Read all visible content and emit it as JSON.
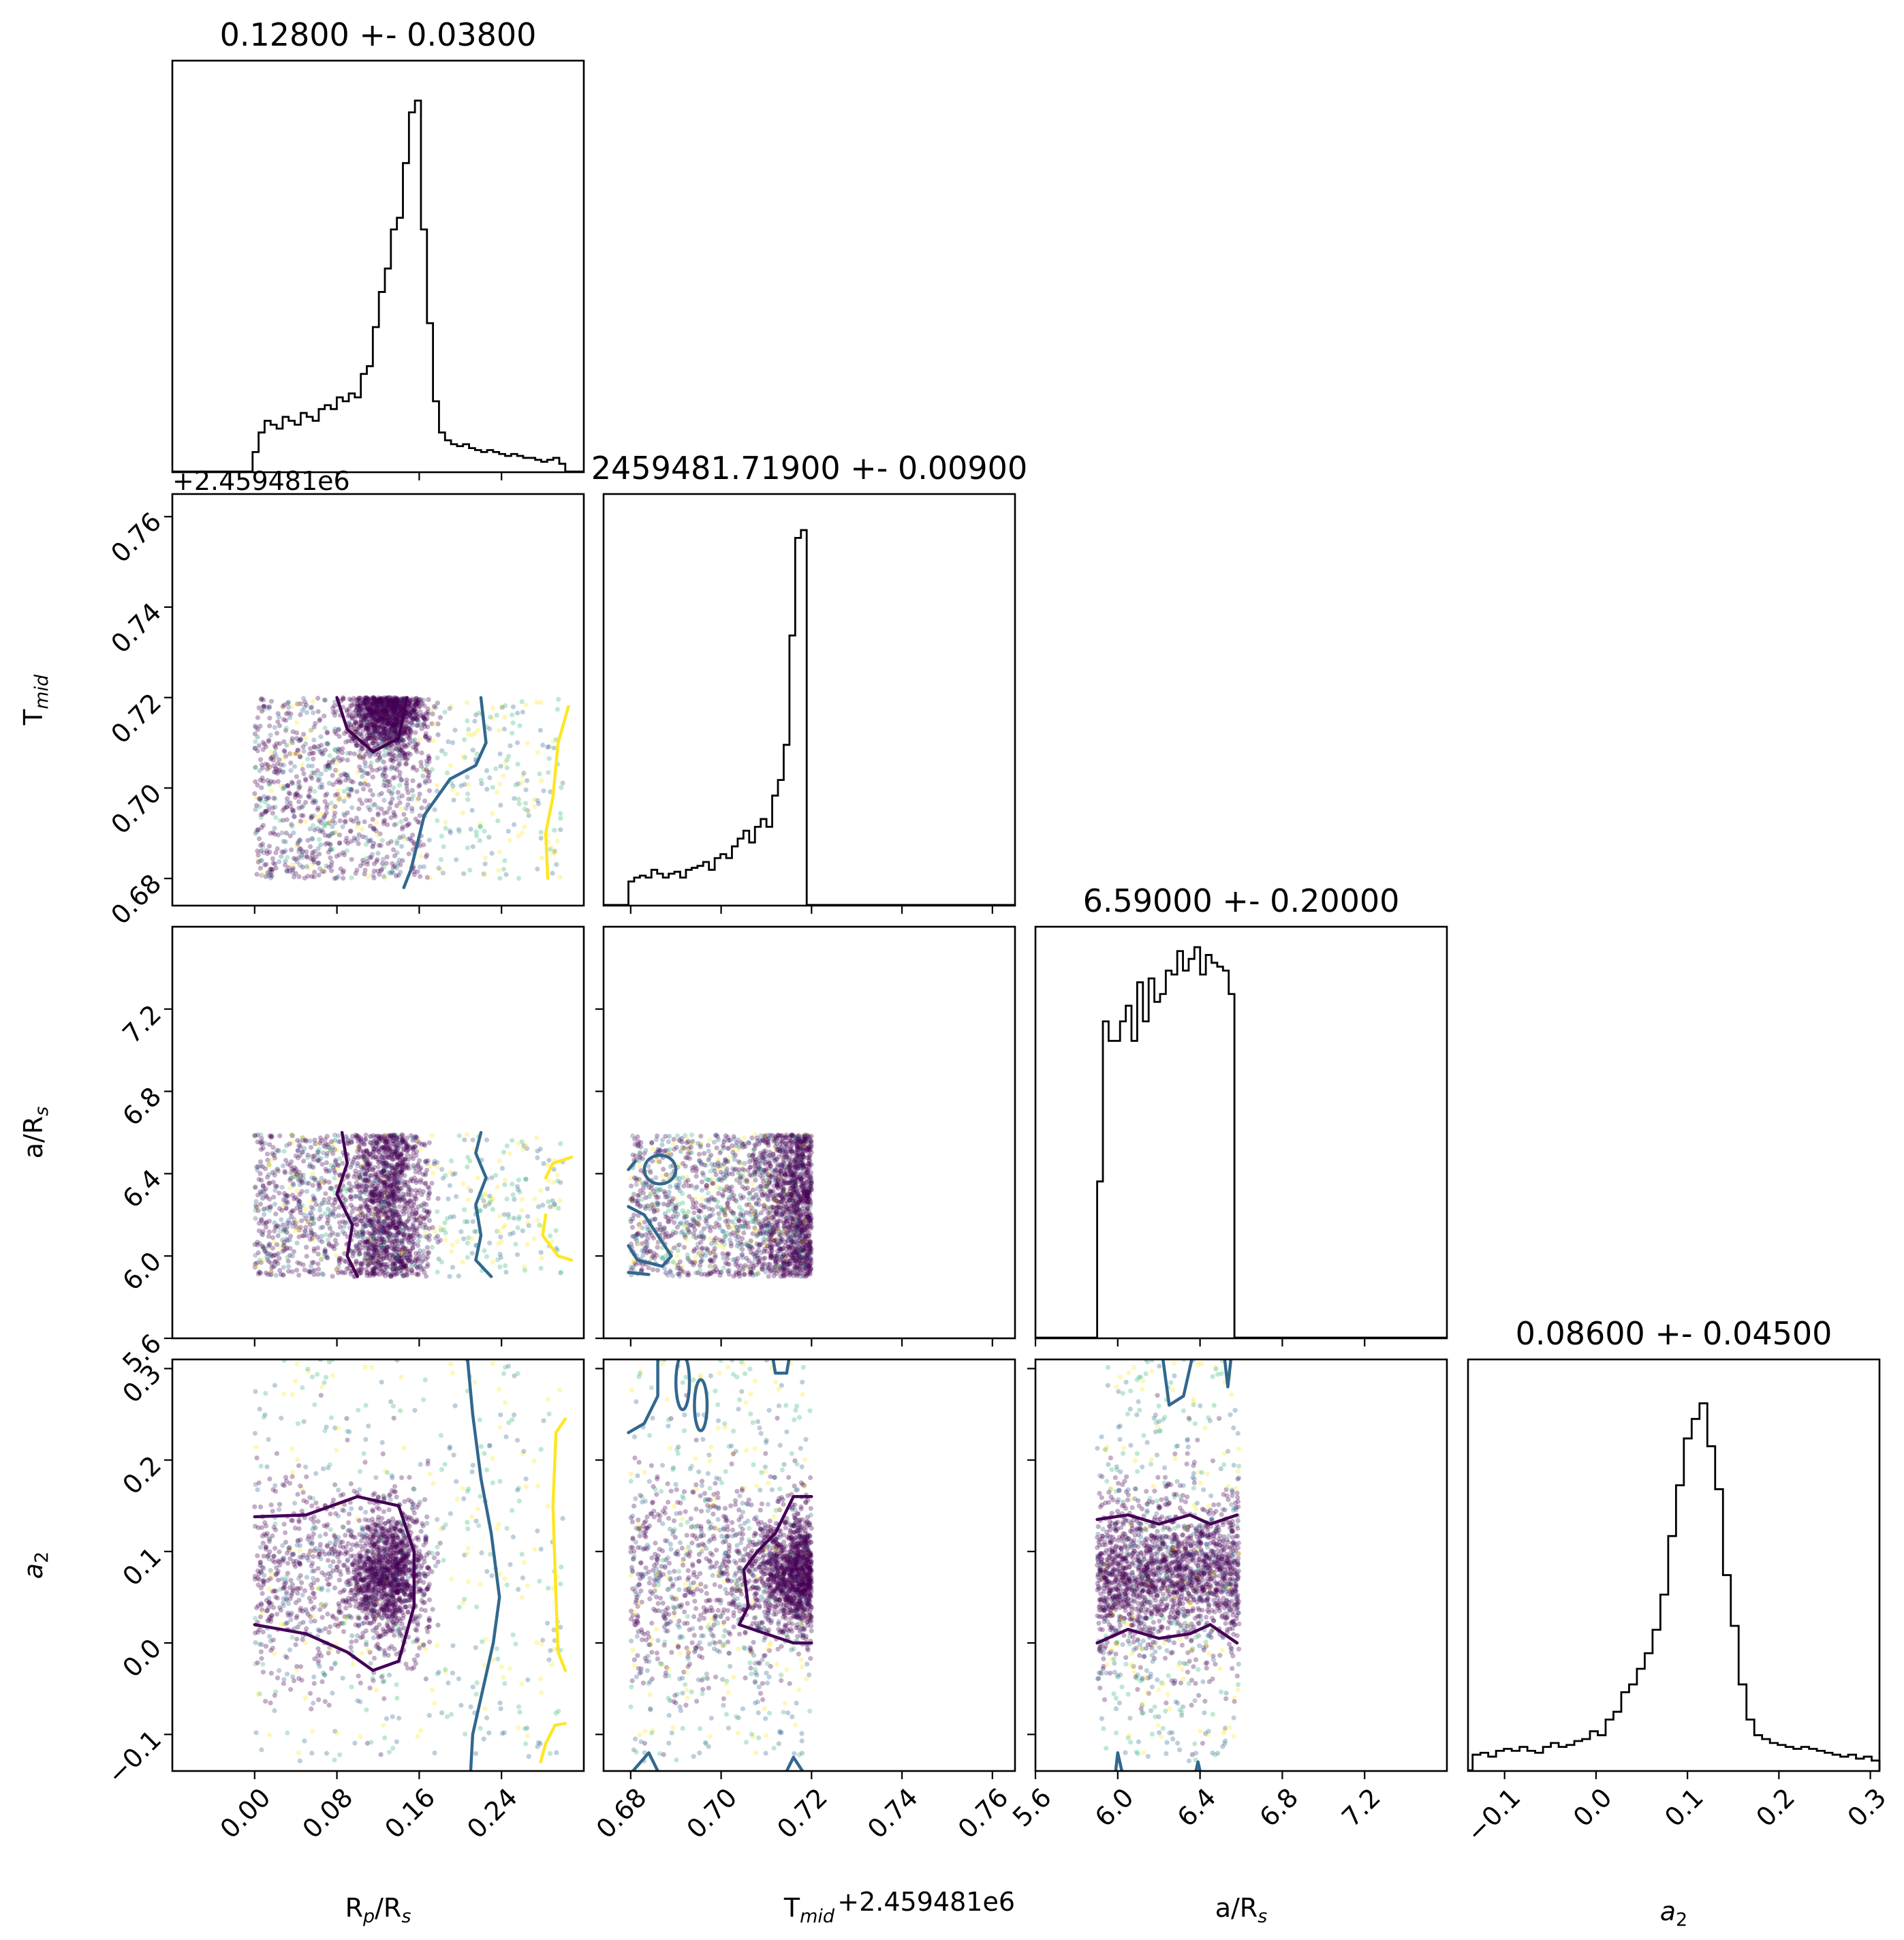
{
  "chart_data": {
    "type": "scatter",
    "kind": "corner plot",
    "parameters": [
      {
        "key": "rprs",
        "label": "R",
        "sub": "p",
        "label_tail": "/R",
        "sub2": "s",
        "range": [
          -0.08,
          0.32
        ],
        "ticks": [
          0.0,
          0.08,
          0.16,
          0.24
        ],
        "tick_labels": [
          "0.00",
          "0.08",
          "0.16",
          "0.24"
        ],
        "title": "0.12800 +- 0.03800",
        "median": 0.128,
        "sigma": 0.038
      },
      {
        "key": "tmid",
        "label": "T",
        "sub": "mid",
        "label_tail": "",
        "sub2": "",
        "range": [
          0.674,
          0.765
        ],
        "ticks": [
          0.68,
          0.7,
          0.72,
          0.74,
          0.76
        ],
        "tick_labels": [
          "0.68",
          "0.70",
          "0.72",
          "0.74",
          "0.76"
        ],
        "offset_text": "+2.459481e6",
        "title": "2459481.71900 +- 0.00900",
        "median": 0.719,
        "sigma": 0.009
      },
      {
        "key": "ars",
        "label": "a/R",
        "sub": "s",
        "label_tail": "",
        "sub2": "",
        "range": [
          5.6,
          7.6
        ],
        "ticks": [
          5.6,
          6.0,
          6.4,
          6.8,
          7.2
        ],
        "tick_labels": [
          "5.6",
          "6.0",
          "6.4",
          "6.8",
          "7.2"
        ],
        "title": "6.59000 +- 0.20000",
        "median": 6.59,
        "sigma": 0.2
      },
      {
        "key": "a2",
        "label": "a",
        "sub": "2",
        "label_tail": "",
        "sub2": "",
        "italic": true,
        "range": [
          -0.14,
          0.31
        ],
        "ticks": [
          -0.1,
          0.0,
          0.1,
          0.2,
          0.3
        ],
        "tick_labels": [
          "−0.1",
          "0.0",
          "0.1",
          "0.2",
          "0.3"
        ],
        "title": "0.08600 +- 0.04500",
        "median": 0.086,
        "sigma": 0.045
      }
    ],
    "histograms": {
      "rprs": {
        "bins": [
          -0.002,
          0.302
        ],
        "counts": [
          0.05,
          0.1,
          0.13,
          0.12,
          0.11,
          0.14,
          0.13,
          0.12,
          0.15,
          0.14,
          0.13,
          0.16,
          0.17,
          0.16,
          0.19,
          0.18,
          0.2,
          0.19,
          0.25,
          0.27,
          0.37,
          0.46,
          0.52,
          0.62,
          0.65,
          0.79,
          0.92,
          0.95,
          0.62,
          0.38,
          0.18,
          0.1,
          0.08,
          0.07,
          0.065,
          0.07,
          0.06,
          0.055,
          0.05,
          0.055,
          0.05,
          0.045,
          0.04,
          0.045,
          0.04,
          0.035,
          0.035,
          0.03,
          0.025,
          0.03,
          0.035,
          0.02
        ]
      },
      "tmid": {
        "bins": [
          0.6795,
          0.7202
        ],
        "counts": [
          0.06,
          0.07,
          0.075,
          0.07,
          0.09,
          0.08,
          0.07,
          0.08,
          0.085,
          0.07,
          0.09,
          0.095,
          0.1,
          0.11,
          0.09,
          0.12,
          0.13,
          0.12,
          0.15,
          0.17,
          0.19,
          0.16,
          0.2,
          0.22,
          0.2,
          0.28,
          0.32,
          0.41,
          0.69,
          0.94,
          0.96,
          0.0
        ]
      },
      "ars": {
        "bins": [
          5.9,
          6.595
        ],
        "counts": [
          0.4,
          0.81,
          0.76,
          0.76,
          0.81,
          0.85,
          0.76,
          0.91,
          0.81,
          0.92,
          0.86,
          0.88,
          0.94,
          0.93,
          0.99,
          0.94,
          0.97,
          1.0,
          0.93,
          0.98,
          0.96,
          0.95,
          0.94,
          0.88,
          0.0
        ]
      },
      "a2": {
        "bins": [
          -0.135,
          0.31
        ],
        "counts": [
          0.04,
          0.045,
          0.035,
          0.05,
          0.055,
          0.05,
          0.06,
          0.05,
          0.045,
          0.06,
          0.07,
          0.06,
          0.065,
          0.075,
          0.08,
          0.1,
          0.09,
          0.13,
          0.15,
          0.2,
          0.22,
          0.26,
          0.3,
          0.36,
          0.45,
          0.6,
          0.73,
          0.85,
          0.9,
          0.94,
          0.83,
          0.72,
          0.5,
          0.37,
          0.22,
          0.13,
          0.09,
          0.08,
          0.07,
          0.065,
          0.06,
          0.055,
          0.06,
          0.055,
          0.05,
          0.045,
          0.04,
          0.035,
          0.04,
          0.03,
          0.035,
          0.025
        ]
      }
    },
    "scatter": {
      "n_points": 2200,
      "color_scale": "viridis",
      "note": "posterior samples colored by likelihood; dense purple cluster near the median"
    },
    "contours": {
      "levels": [
        "#440154",
        "#31688e",
        "#fde725"
      ]
    },
    "colors": {
      "hist": "#000000",
      "dark": "#440154",
      "mid": "#31688e",
      "teal": "#35b779",
      "yellow": "#fde725"
    }
  }
}
